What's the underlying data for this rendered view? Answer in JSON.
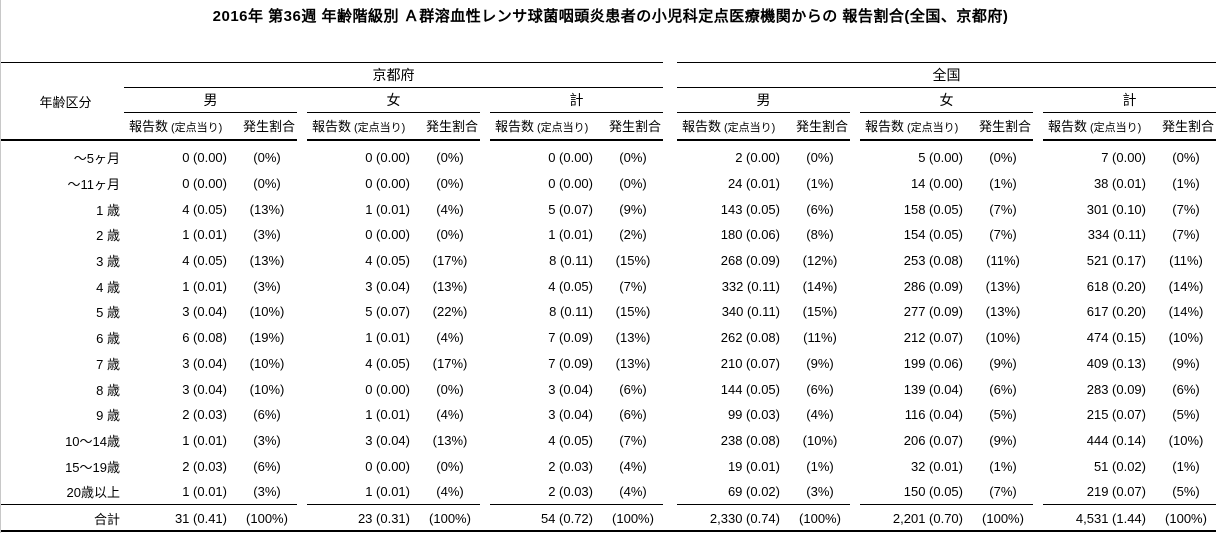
{
  "title": "2016年 第36週 年齢階級別 Ａ群溶血性レンサ球菌咽頭炎患者の小児科定点医療機関からの 報告割合(全国、京都府)",
  "header": {
    "age_label": "年齢区分",
    "regions": [
      "京都府",
      "全国"
    ],
    "sex": [
      "男",
      "女",
      "計"
    ],
    "report_label": "報告数",
    "per_sentinel_label": "(定点当り)",
    "rate_label": "発生割合"
  },
  "chart_data": {
    "type": "table",
    "title": "2016年 第36週 年齢階級別 Ａ群溶血性レンサ球菌咽頭炎患者の小児科定点医療機関からの 報告割合(全国、京都府)",
    "column_groups": [
      "京都府 男",
      "京都府 女",
      "京都府 計",
      "全国 男",
      "全国 女",
      "全国 計"
    ],
    "columns_per_group": [
      "報告数 (定点当り)",
      "発生割合"
    ],
    "rows": [
      {
        "age": "〜5ヶ月",
        "values": [
          "0 (0.00)",
          "(0%)",
          "0 (0.00)",
          "(0%)",
          "0 (0.00)",
          "(0%)",
          "2 (0.00)",
          "(0%)",
          "5 (0.00)",
          "(0%)",
          "7 (0.00)",
          "(0%)"
        ]
      },
      {
        "age": "〜11ヶ月",
        "values": [
          "0 (0.00)",
          "(0%)",
          "0 (0.00)",
          "(0%)",
          "0 (0.00)",
          "(0%)",
          "24 (0.01)",
          "(1%)",
          "14 (0.00)",
          "(1%)",
          "38 (0.01)",
          "(1%)"
        ]
      },
      {
        "age": "1 歳",
        "values": [
          "4 (0.05)",
          "(13%)",
          "1 (0.01)",
          "(4%)",
          "5 (0.07)",
          "(9%)",
          "143 (0.05)",
          "(6%)",
          "158 (0.05)",
          "(7%)",
          "301 (0.10)",
          "(7%)"
        ]
      },
      {
        "age": "2 歳",
        "values": [
          "1 (0.01)",
          "(3%)",
          "0 (0.00)",
          "(0%)",
          "1 (0.01)",
          "(2%)",
          "180 (0.06)",
          "(8%)",
          "154 (0.05)",
          "(7%)",
          "334 (0.11)",
          "(7%)"
        ]
      },
      {
        "age": "3 歳",
        "values": [
          "4 (0.05)",
          "(13%)",
          "4 (0.05)",
          "(17%)",
          "8 (0.11)",
          "(15%)",
          "268 (0.09)",
          "(12%)",
          "253 (0.08)",
          "(11%)",
          "521 (0.17)",
          "(11%)"
        ]
      },
      {
        "age": "4 歳",
        "values": [
          "1 (0.01)",
          "(3%)",
          "3 (0.04)",
          "(13%)",
          "4 (0.05)",
          "(7%)",
          "332 (0.11)",
          "(14%)",
          "286 (0.09)",
          "(13%)",
          "618 (0.20)",
          "(14%)"
        ]
      },
      {
        "age": "5 歳",
        "values": [
          "3 (0.04)",
          "(10%)",
          "5 (0.07)",
          "(22%)",
          "8 (0.11)",
          "(15%)",
          "340 (0.11)",
          "(15%)",
          "277 (0.09)",
          "(13%)",
          "617 (0.20)",
          "(14%)"
        ]
      },
      {
        "age": "6 歳",
        "values": [
          "6 (0.08)",
          "(19%)",
          "1 (0.01)",
          "(4%)",
          "7 (0.09)",
          "(13%)",
          "262 (0.08)",
          "(11%)",
          "212 (0.07)",
          "(10%)",
          "474 (0.15)",
          "(10%)"
        ]
      },
      {
        "age": "7 歳",
        "values": [
          "3 (0.04)",
          "(10%)",
          "4 (0.05)",
          "(17%)",
          "7 (0.09)",
          "(13%)",
          "210 (0.07)",
          "(9%)",
          "199 (0.06)",
          "(9%)",
          "409 (0.13)",
          "(9%)"
        ]
      },
      {
        "age": "8 歳",
        "values": [
          "3 (0.04)",
          "(10%)",
          "0 (0.00)",
          "(0%)",
          "3 (0.04)",
          "(6%)",
          "144 (0.05)",
          "(6%)",
          "139 (0.04)",
          "(6%)",
          "283 (0.09)",
          "(6%)"
        ]
      },
      {
        "age": "9 歳",
        "values": [
          "2 (0.03)",
          "(6%)",
          "1 (0.01)",
          "(4%)",
          "3 (0.04)",
          "(6%)",
          "99 (0.03)",
          "(4%)",
          "116 (0.04)",
          "(5%)",
          "215 (0.07)",
          "(5%)"
        ]
      },
      {
        "age": "10〜14歳",
        "values": [
          "1 (0.01)",
          "(3%)",
          "3 (0.04)",
          "(13%)",
          "4 (0.05)",
          "(7%)",
          "238 (0.08)",
          "(10%)",
          "206 (0.07)",
          "(9%)",
          "444 (0.14)",
          "(10%)"
        ]
      },
      {
        "age": "15〜19歳",
        "values": [
          "2 (0.03)",
          "(6%)",
          "0 (0.00)",
          "(0%)",
          "2 (0.03)",
          "(4%)",
          "19 (0.01)",
          "(1%)",
          "32 (0.01)",
          "(1%)",
          "51 (0.02)",
          "(1%)"
        ]
      },
      {
        "age": "20歳以上",
        "values": [
          "1 (0.01)",
          "(3%)",
          "1 (0.01)",
          "(4%)",
          "2 (0.03)",
          "(4%)",
          "69 (0.02)",
          "(3%)",
          "150 (0.05)",
          "(7%)",
          "219 (0.07)",
          "(5%)"
        ]
      }
    ],
    "total_row": {
      "age": "合計",
      "values": [
        "31 (0.41)",
        "(100%)",
        "23 (0.31)",
        "(100%)",
        "54 (0.72)",
        "(100%)",
        "2,330 (0.74)",
        "(100%)",
        "2,201 (0.70)",
        "(100%)",
        "4,531 (1.44)",
        "(100%)"
      ]
    }
  }
}
